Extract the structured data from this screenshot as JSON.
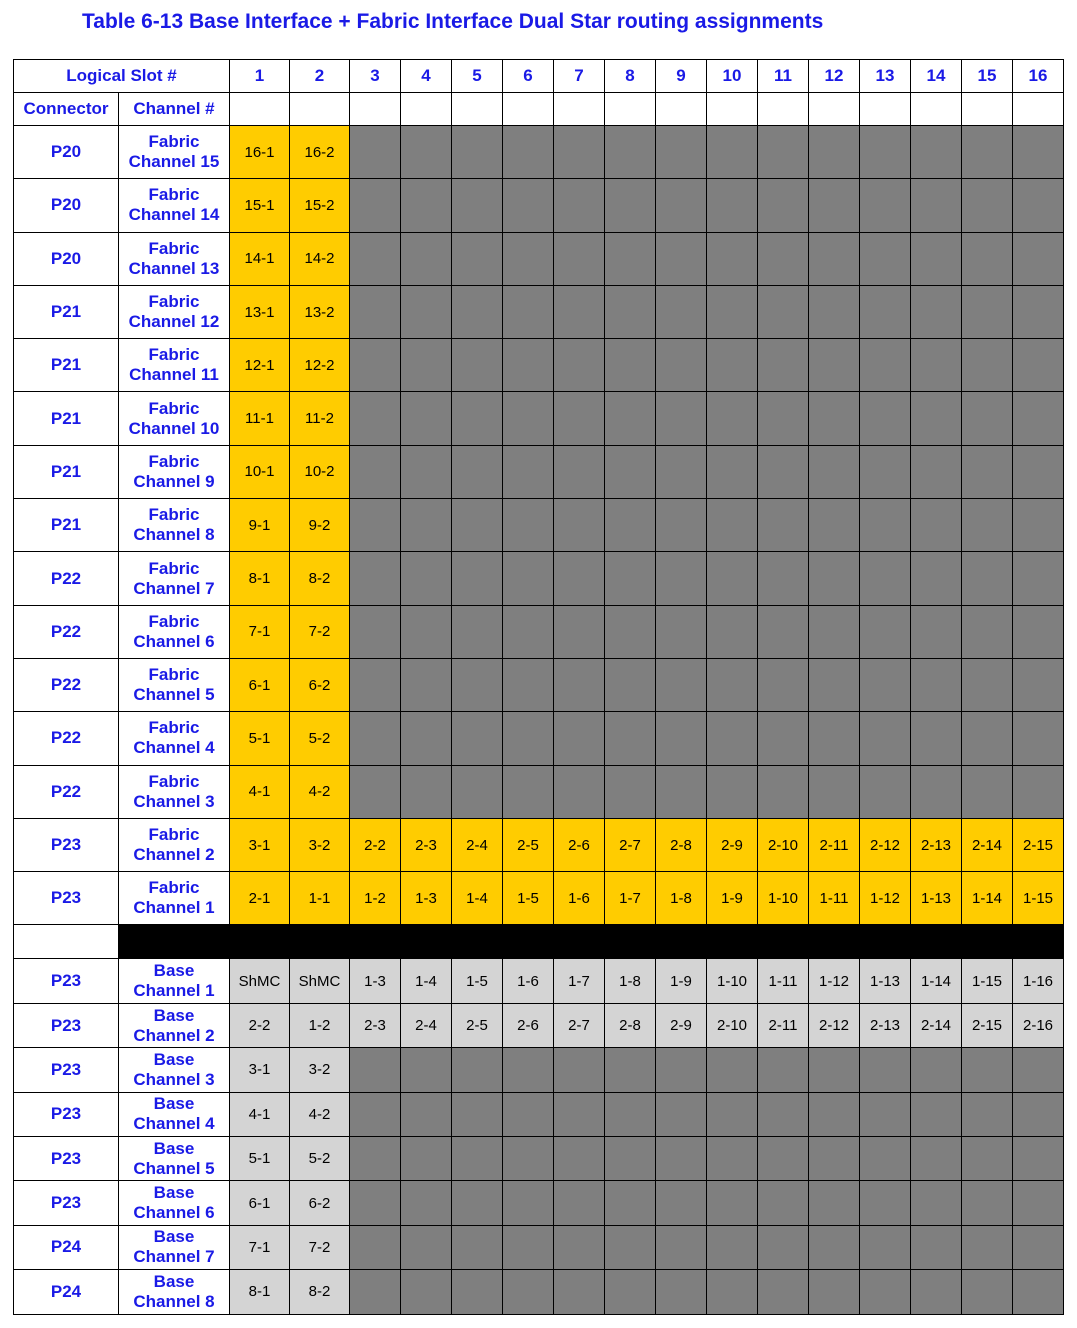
{
  "title": "Table 6-13 Base Interface + Fabric Interface Dual Star routing assignments",
  "header": {
    "logical_slot_label": "Logical Slot #",
    "connector_label": "Connector",
    "channel_label": "Channel #",
    "slots": [
      "1",
      "2",
      "3",
      "4",
      "5",
      "6",
      "7",
      "8",
      "9",
      "10",
      "11",
      "12",
      "13",
      "14",
      "15",
      "16"
    ]
  },
  "fabric_rows": [
    {
      "connector": "P20",
      "line1": "Fabric",
      "line2": "Channel 15",
      "cells": [
        "16-1",
        "16-2"
      ]
    },
    {
      "connector": "P20",
      "line1": "Fabric",
      "line2": "Channel 14",
      "cells": [
        "15-1",
        "15-2"
      ]
    },
    {
      "connector": "P20",
      "line1": "Fabric",
      "line2": "Channel 13",
      "cells": [
        "14-1",
        "14-2"
      ]
    },
    {
      "connector": "P21",
      "line1": "Fabric",
      "line2": "Channel 12",
      "cells": [
        "13-1",
        "13-2"
      ]
    },
    {
      "connector": "P21",
      "line1": "Fabric",
      "line2": "Channel 11",
      "cells": [
        "12-1",
        "12-2"
      ]
    },
    {
      "connector": "P21",
      "line1": "Fabric",
      "line2": "Channel 10",
      "cells": [
        "11-1",
        "11-2"
      ]
    },
    {
      "connector": "P21",
      "line1": "Fabric",
      "line2": "Channel 9",
      "cells": [
        "10-1",
        "10-2"
      ]
    },
    {
      "connector": "P21",
      "line1": "Fabric",
      "line2": "Channel 8",
      "cells": [
        "9-1",
        "9-2"
      ]
    },
    {
      "connector": "P22",
      "line1": "Fabric",
      "line2": "Channel 7",
      "cells": [
        "8-1",
        "8-2"
      ]
    },
    {
      "connector": "P22",
      "line1": "Fabric",
      "line2": "Channel 6",
      "cells": [
        "7-1",
        "7-2"
      ]
    },
    {
      "connector": "P22",
      "line1": "Fabric",
      "line2": "Channel 5",
      "cells": [
        "6-1",
        "6-2"
      ]
    },
    {
      "connector": "P22",
      "line1": "Fabric",
      "line2": "Channel 4",
      "cells": [
        "5-1",
        "5-2"
      ]
    },
    {
      "connector": "P22",
      "line1": "Fabric",
      "line2": "Channel 3",
      "cells": [
        "4-1",
        "4-2"
      ]
    },
    {
      "connector": "P23",
      "line1": "Fabric",
      "line2": "Channel 2",
      "cells": [
        "3-1",
        "3-2",
        "2-2",
        "2-3",
        "2-4",
        "2-5",
        "2-6",
        "2-7",
        "2-8",
        "2-9",
        "2-10",
        "2-11",
        "2-12",
        "2-13",
        "2-14",
        "2-15"
      ]
    },
    {
      "connector": "P23",
      "line1": "Fabric",
      "line2": "Channel 1",
      "cells": [
        "2-1",
        "1-1",
        "1-2",
        "1-3",
        "1-4",
        "1-5",
        "1-6",
        "1-7",
        "1-8",
        "1-9",
        "1-10",
        "1-11",
        "1-12",
        "1-13",
        "1-14",
        "1-15"
      ]
    }
  ],
  "base_rows": [
    {
      "connector": "P23",
      "line1": "Base",
      "line2": "Channel 1",
      "cells": [
        "ShMC",
        "ShMC",
        "1-3",
        "1-4",
        "1-5",
        "1-6",
        "1-7",
        "1-8",
        "1-9",
        "1-10",
        "1-11",
        "1-12",
        "1-13",
        "1-14",
        "1-15",
        "1-16"
      ]
    },
    {
      "connector": "P23",
      "line1": "Base",
      "line2": "Channel 2",
      "cells": [
        "2-2",
        "1-2",
        "2-3",
        "2-4",
        "2-5",
        "2-6",
        "2-7",
        "2-8",
        "2-9",
        "2-10",
        "2-11",
        "2-12",
        "2-13",
        "2-14",
        "2-15",
        "2-16"
      ]
    },
    {
      "connector": "P23",
      "line1": "Base",
      "line2": "Channel 3",
      "cells": [
        "3-1",
        "3-2"
      ]
    },
    {
      "connector": "P23",
      "line1": "Base",
      "line2": "Channel 4",
      "cells": [
        "4-1",
        "4-2"
      ]
    },
    {
      "connector": "P23",
      "line1": "Base",
      "line2": "Channel 5",
      "cells": [
        "5-1",
        "5-2"
      ]
    },
    {
      "connector": "P23",
      "line1": "Base",
      "line2": "Channel 6",
      "cells": [
        "6-1",
        "6-2"
      ]
    },
    {
      "connector": "P24",
      "line1": "Base",
      "line2": "Channel 7",
      "cells": [
        "7-1",
        "7-2"
      ]
    },
    {
      "connector": "P24",
      "line1": "Base",
      "line2": "Channel 8",
      "cells": [
        "8-1",
        "8-2"
      ]
    }
  ],
  "colors": {
    "title_text": "#1a1ae6",
    "fabric_assigned": "#ffcc00",
    "base_assigned": "#d4d4d4",
    "unassigned": "#7f7f7f",
    "separator": "#000000"
  }
}
